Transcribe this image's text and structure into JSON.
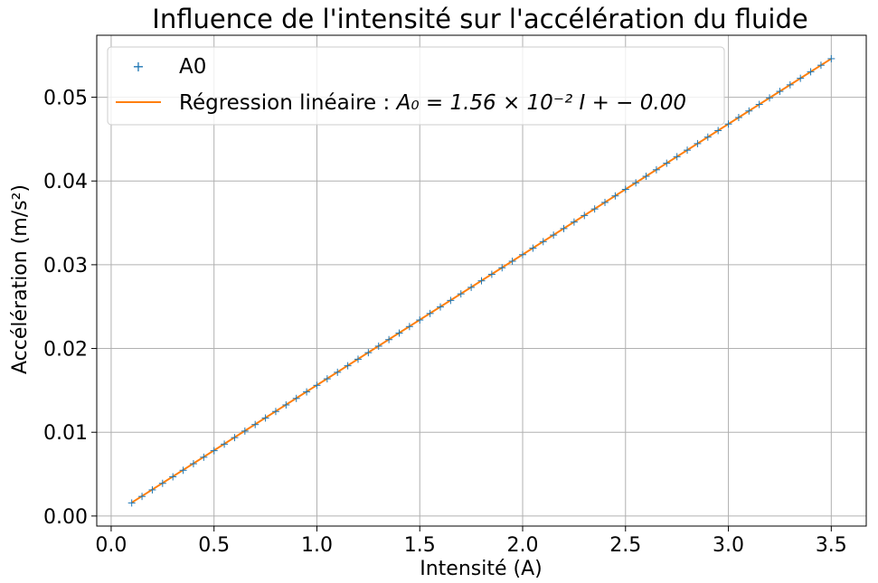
{
  "chart_data": {
    "type": "line",
    "title": "Influence de l'intensité sur l'accélération du fluide",
    "xlabel": "Intensité (A)",
    "ylabel": "Accélération (m/s²)",
    "xlim": [
      -0.07,
      3.67
    ],
    "ylim": [
      -0.0012,
      0.0574
    ],
    "x_ticks": [
      0.0,
      0.5,
      1.0,
      1.5,
      2.0,
      2.5,
      3.0,
      3.5
    ],
    "x_tick_labels": [
      "0.0",
      "0.5",
      "1.0",
      "1.5",
      "2.0",
      "2.5",
      "3.0",
      "3.5"
    ],
    "y_ticks": [
      0.0,
      0.01,
      0.02,
      0.03,
      0.04,
      0.05
    ],
    "y_tick_labels": [
      "0.00",
      "0.01",
      "0.02",
      "0.03",
      "0.04",
      "0.05"
    ],
    "grid": true,
    "legend_position": "top-left",
    "series": [
      {
        "name": "A0",
        "kind": "scatter",
        "marker": "+",
        "color": "#1f77b4",
        "x_start": 0.1,
        "x_end": 3.5,
        "x_step": 0.05,
        "slope": 0.0156,
        "intercept": 0.0
      },
      {
        "name": "Régression linéaire",
        "kind": "line",
        "color": "#ff7f0e",
        "x": [
          0.1,
          3.5
        ],
        "y": [
          0.0016,
          0.0546
        ],
        "slope": 0.0156,
        "intercept": 0.0
      }
    ],
    "legend": {
      "entry_scatter": "A0",
      "entry_line_prefix": "Régression linéaire : ",
      "entry_line_equation": "A₀ = 1.56 × 10⁻² I + − 0.00"
    }
  }
}
